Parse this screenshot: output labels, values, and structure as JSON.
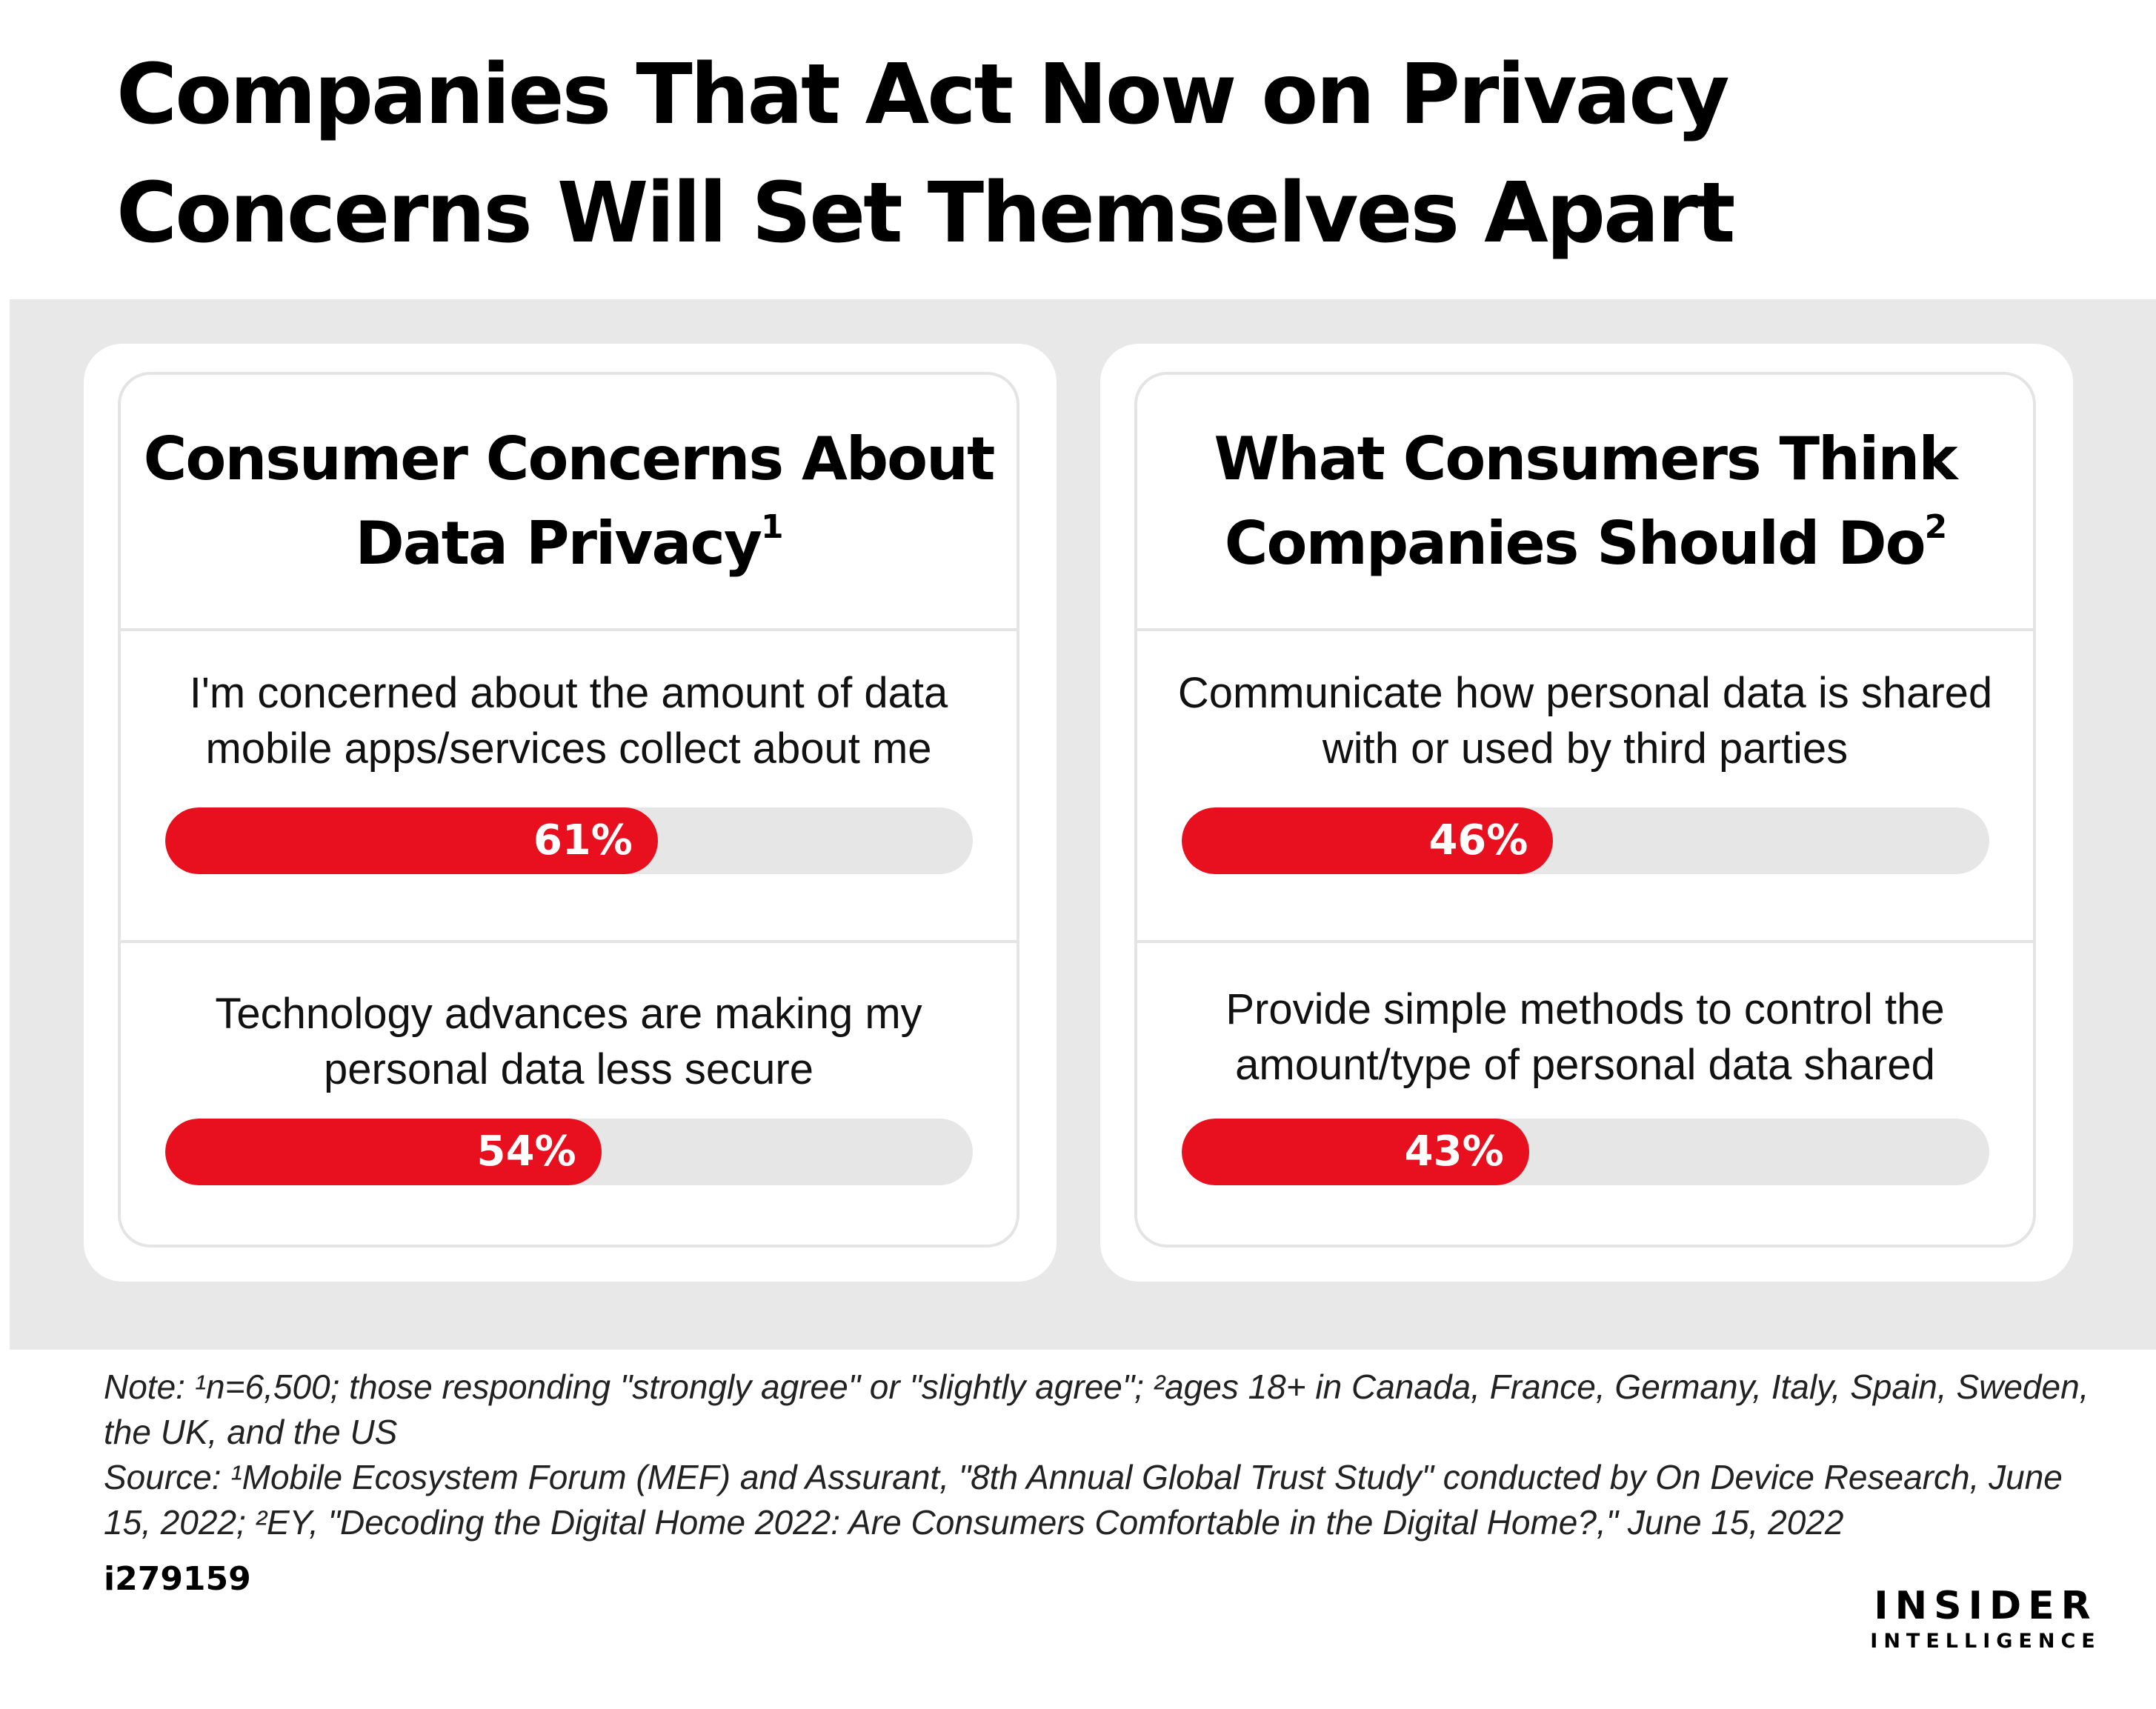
{
  "title": "Companies That Act Now on Privacy Concerns Will Set Themselves Apart",
  "chart_data": [
    {
      "type": "bar",
      "title": "Consumer Concerns About Data Privacy",
      "title_footnote": "1",
      "categories": [
        "I'm concerned about the amount of data mobile apps/services collect about me",
        "Technology advances are making my personal data less secure"
      ],
      "values": [
        61,
        54
      ],
      "value_labels": [
        "61%",
        "54%"
      ],
      "ylim": [
        0,
        100
      ],
      "orientation": "horizontal",
      "color": "#e8101e"
    },
    {
      "type": "bar",
      "title": "What Consumers Think Companies Should Do",
      "title_footnote": "2",
      "categories": [
        "Communicate how personal data is shared with or used by third parties",
        "Provide simple methods to control the amount/type of personal data shared"
      ],
      "values": [
        46,
        43
      ],
      "value_labels": [
        "46%",
        "43%"
      ],
      "ylim": [
        0,
        100
      ],
      "orientation": "horizontal",
      "color": "#e8101e"
    }
  ],
  "notes": {
    "note": "Note: ¹n=6,500; those responding \"strongly agree\" or \"slightly agree\"; ²ages 18+ in Canada, France, Germany, Italy, Spain, Sweden, the UK, and the US",
    "source": "Source: ¹Mobile Ecosystem Forum (MEF) and Assurant, \"8th Annual Global Trust Study\" conducted by On Device Research, June 15, 2022; ²EY, \"Decoding the Digital Home 2022: Are Consumers Comfortable in the Digital Home?,\" June 15, 2022"
  },
  "chart_id": "i279159",
  "logo": {
    "line1": "INSIDER",
    "line2": "INTELLIGENCE"
  }
}
